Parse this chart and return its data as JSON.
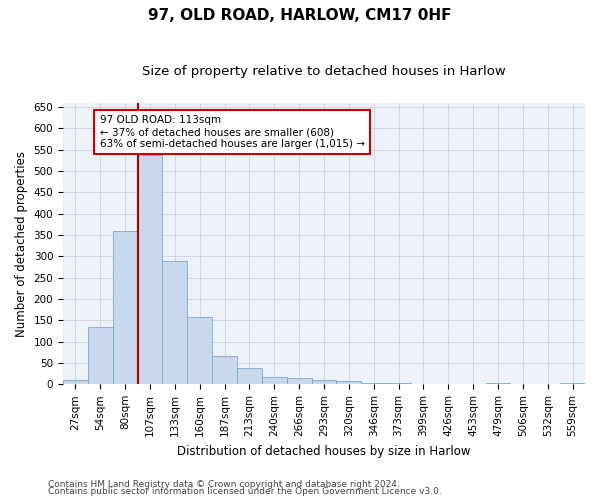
{
  "title": "97, OLD ROAD, HARLOW, CM17 0HF",
  "subtitle": "Size of property relative to detached houses in Harlow",
  "xlabel": "Distribution of detached houses by size in Harlow",
  "ylabel": "Number of detached properties",
  "categories": [
    "27sqm",
    "54sqm",
    "80sqm",
    "107sqm",
    "133sqm",
    "160sqm",
    "187sqm",
    "213sqm",
    "240sqm",
    "266sqm",
    "293sqm",
    "320sqm",
    "346sqm",
    "373sqm",
    "399sqm",
    "426sqm",
    "453sqm",
    "479sqm",
    "506sqm",
    "532sqm",
    "559sqm"
  ],
  "values": [
    10,
    135,
    360,
    537,
    290,
    157,
    67,
    38,
    18,
    15,
    10,
    8,
    4,
    2,
    1,
    0,
    0,
    3,
    0,
    0,
    3
  ],
  "bar_color": "#c9d9ed",
  "bar_edge_color": "#7da8cc",
  "property_line_x": 2.5,
  "annotation_text_line1": "97 OLD ROAD: 113sqm",
  "annotation_text_line2": "← 37% of detached houses are smaller (608)",
  "annotation_text_line3": "63% of semi-detached houses are larger (1,015) →",
  "annotation_box_color": "#ffffff",
  "annotation_box_edge": "#cc0000",
  "line_color": "#aa0000",
  "grid_color": "#d0d8e8",
  "background_color": "#edf1f8",
  "ylim": [
    0,
    660
  ],
  "yticks": [
    0,
    50,
    100,
    150,
    200,
    250,
    300,
    350,
    400,
    450,
    500,
    550,
    600,
    650
  ],
  "footer1": "Contains HM Land Registry data © Crown copyright and database right 2024.",
  "footer2": "Contains public sector information licensed under the Open Government Licence v3.0.",
  "title_fontsize": 11,
  "subtitle_fontsize": 9.5,
  "axis_label_fontsize": 8.5,
  "tick_fontsize": 7.5,
  "footer_fontsize": 6.5
}
